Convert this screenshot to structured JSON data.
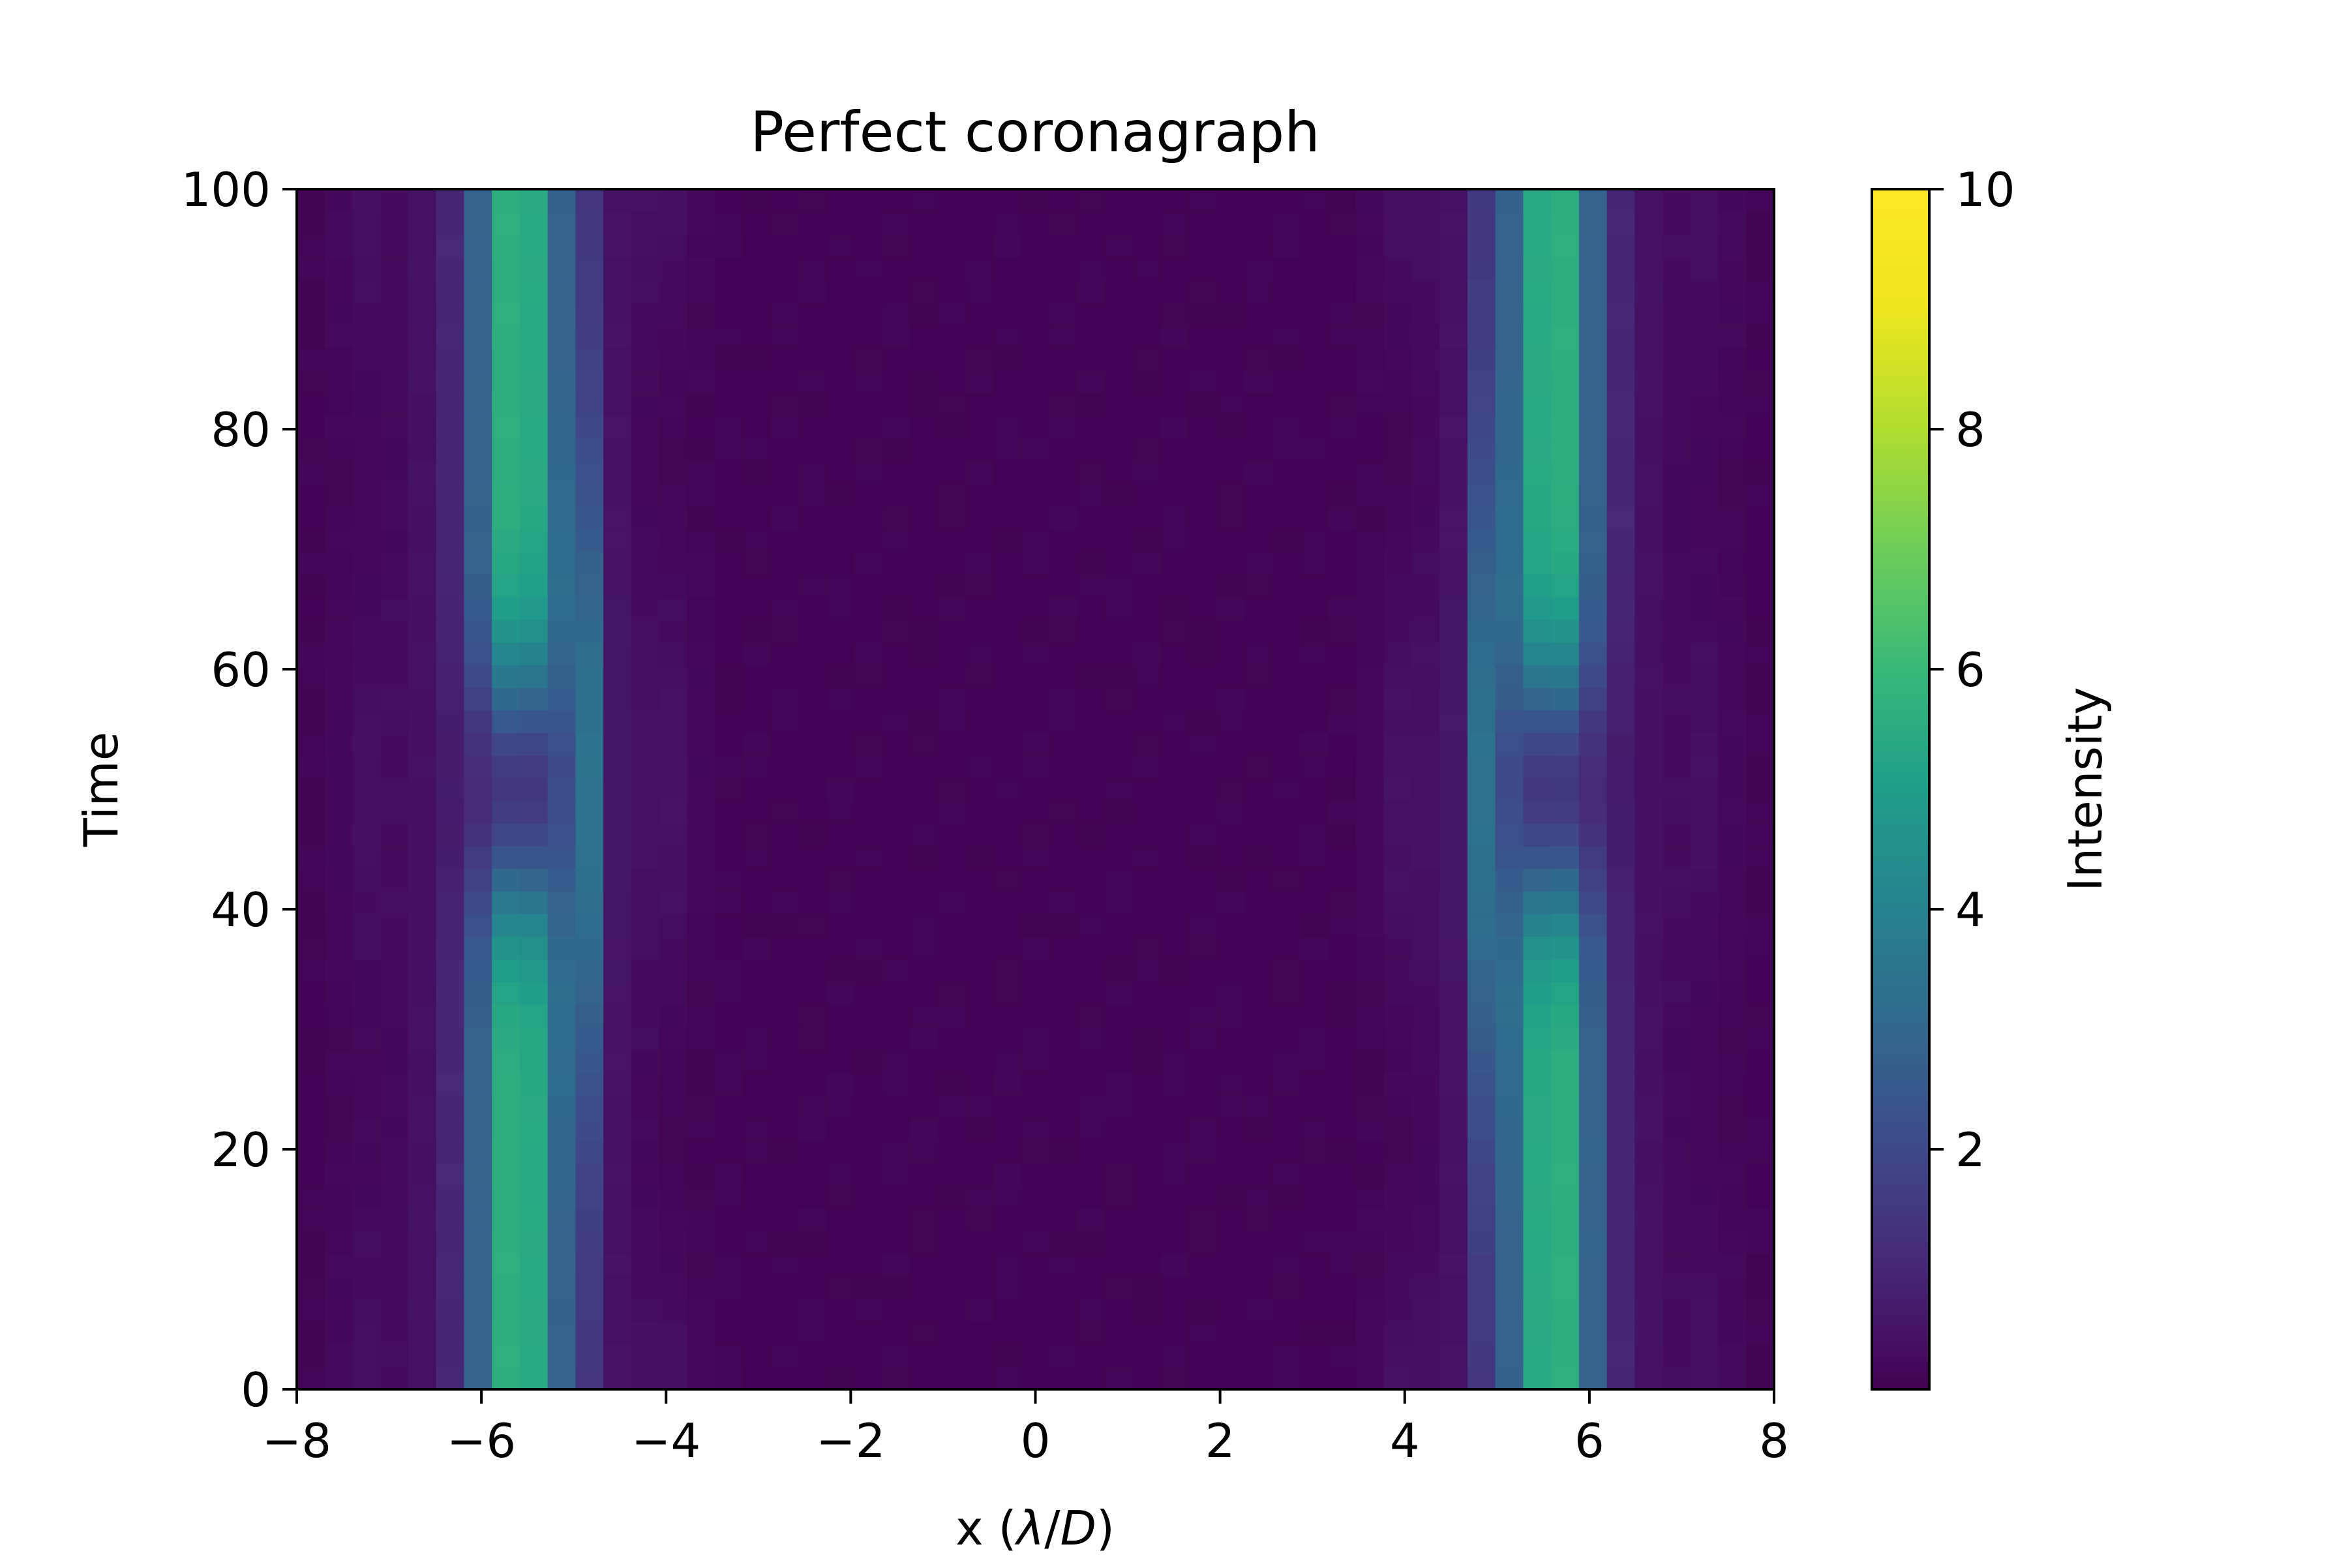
{
  "chart_data": {
    "type": "heatmap",
    "title": "Perfect coronagraph",
    "xlabel_parts": [
      "x (",
      "λ",
      "/",
      "D",
      ")"
    ],
    "ylabel": "Time",
    "xlim": [
      -8,
      8
    ],
    "ylim": [
      0,
      100
    ],
    "x_ticks": [
      -8,
      -6,
      -4,
      -2,
      0,
      2,
      4,
      6,
      8
    ],
    "x_tick_labels": [
      "−8",
      "−6",
      "−4",
      "−2",
      "0",
      "2",
      "4",
      "6",
      "8"
    ],
    "y_ticks": [
      0,
      20,
      40,
      60,
      80,
      100
    ],
    "y_tick_labels": [
      "0",
      "20",
      "40",
      "60",
      "80",
      "100"
    ],
    "colormap": "viridis",
    "colorbar": {
      "label": "Intensity",
      "range": [
        0,
        10
      ],
      "ticks": [
        2,
        4,
        6,
        8,
        10
      ],
      "tick_labels": [
        "2",
        "4",
        "6",
        "8",
        "10"
      ]
    },
    "grid": false,
    "grid_x_cells": 53,
    "grid_t_cells": 53,
    "features": {
      "ring_center_x": 5.6,
      "ring_width_x": 0.45,
      "ring_peak_intensity": 4.9,
      "center_dip_time": 50,
      "center_dip_width": 11,
      "inner_edge_x": 4.9,
      "inner_edge_peak": 5.5,
      "background_intensity": 0.05
    }
  }
}
